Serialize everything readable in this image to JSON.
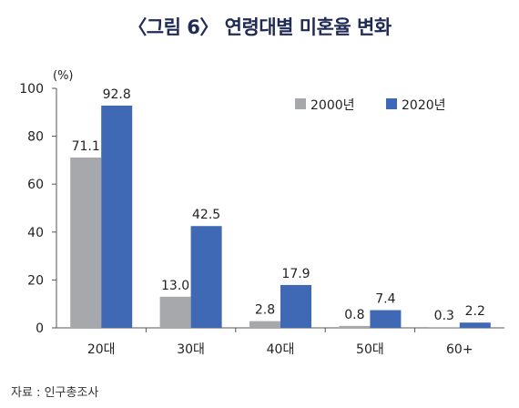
{
  "title": "〈그림 6〉 연령대별 미혼율 변화",
  "source": "자료 : 인구총조사",
  "colors": {
    "series_2000": "#a6a8ab",
    "series_2020": "#3f69b5"
  },
  "chart_data": {
    "type": "bar",
    "title": "〈그림 6〉 연령대별 미혼율 변화",
    "ylabel": "(%)",
    "xlabel": "",
    "ylim": [
      0,
      100
    ],
    "yticks": [
      0,
      20,
      40,
      60,
      80,
      100
    ],
    "grid": false,
    "legend": "top-right",
    "categories": [
      "20대",
      "30대",
      "40대",
      "50대",
      "60+"
    ],
    "series": [
      {
        "name": "2000년",
        "values": [
          71.1,
          13.0,
          2.8,
          0.8,
          0.3
        ],
        "labels": [
          "71.1",
          "13.0",
          "2.8",
          "0.8",
          "0.3"
        ]
      },
      {
        "name": "2020년",
        "values": [
          92.8,
          42.5,
          17.9,
          7.4,
          2.2
        ],
        "labels": [
          "92.8",
          "42.5",
          "17.9",
          "7.4",
          "2.2"
        ]
      }
    ]
  }
}
